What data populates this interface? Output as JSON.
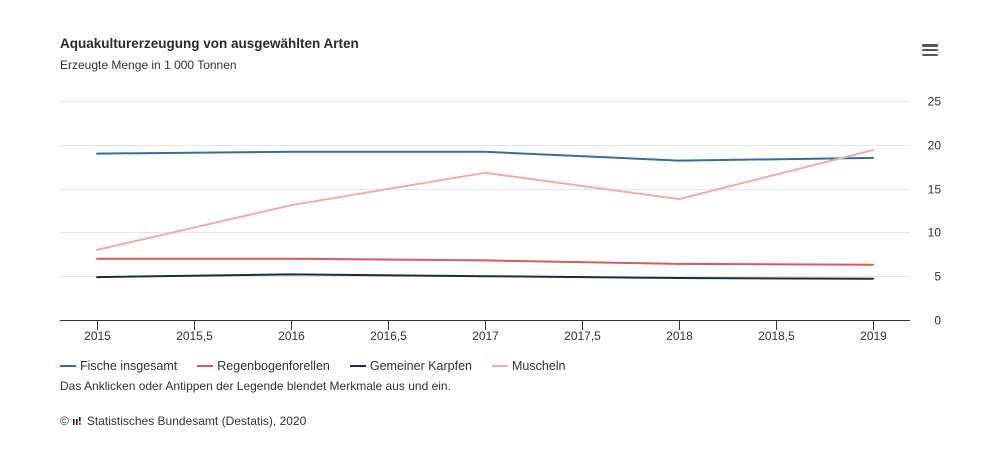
{
  "icons": {
    "menu": "hamburger-menu-icon",
    "logo": "destatis-logo-icon"
  },
  "chart_data": {
    "type": "line",
    "title": "Aquakulturerzeugung von ausgewählten Arten",
    "subtitle": "Erzeugte Menge in 1 000 Tonnen",
    "x": [
      2015,
      2016,
      2017,
      2018,
      2019
    ],
    "xlim": [
      2015,
      2019
    ],
    "x_ticks": [
      {
        "value": 2015,
        "label": "2015"
      },
      {
        "value": 2015.5,
        "label": "2015,5"
      },
      {
        "value": 2016,
        "label": "2016"
      },
      {
        "value": 2016.5,
        "label": "2016,5"
      },
      {
        "value": 2017,
        "label": "2017"
      },
      {
        "value": 2017.5,
        "label": "2017,5"
      },
      {
        "value": 2018,
        "label": "2018"
      },
      {
        "value": 2018.5,
        "label": "2018,5"
      },
      {
        "value": 2019,
        "label": "2019"
      }
    ],
    "ylim": [
      0,
      25
    ],
    "y_ticks": [
      0,
      5,
      10,
      15,
      20,
      25
    ],
    "y_axis_side": "right",
    "grid": true,
    "legend": "bottom-left",
    "series": [
      {
        "name": "Fische insgesamt",
        "color": "#33709f",
        "values": [
          19.0,
          19.2,
          19.2,
          18.2,
          18.5
        ]
      },
      {
        "name": "Regenbogenforellen",
        "color": "#d65c5c",
        "values": [
          7.0,
          7.0,
          6.8,
          6.4,
          6.3
        ]
      },
      {
        "name": "Gemeiner Karpfen",
        "color": "#1c2b48",
        "values": [
          4.9,
          5.2,
          5.0,
          4.8,
          4.7
        ]
      },
      {
        "name": "Muscheln",
        "color": "#f2aaaa",
        "values": [
          8.0,
          13.1,
          16.8,
          13.8,
          19.4
        ]
      }
    ]
  },
  "legend_note": "Das Anklicken oder Antippen der Legende blendet Merkmale aus und ein.",
  "credits": {
    "copyright": "©",
    "source": "Statistisches Bundesamt (Destatis), 2020"
  }
}
